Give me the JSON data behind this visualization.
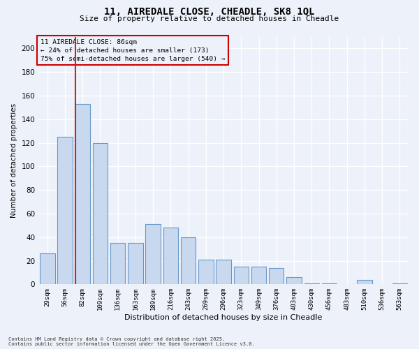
{
  "title": "11, AIREDALE CLOSE, CHEADLE, SK8 1QL",
  "subtitle": "Size of property relative to detached houses in Cheadle",
  "xlabel": "Distribution of detached houses by size in Cheadle",
  "ylabel": "Number of detached properties",
  "categories": [
    "29sqm",
    "56sqm",
    "82sqm",
    "109sqm",
    "136sqm",
    "163sqm",
    "189sqm",
    "216sqm",
    "243sqm",
    "269sqm",
    "296sqm",
    "323sqm",
    "349sqm",
    "376sqm",
    "403sqm",
    "430sqm",
    "456sqm",
    "483sqm",
    "510sqm",
    "536sqm",
    "563sqm"
  ],
  "values": [
    26,
    125,
    153,
    120,
    35,
    35,
    51,
    48,
    40,
    21,
    21,
    15,
    15,
    14,
    6,
    1,
    1,
    0,
    4,
    0,
    1
  ],
  "bar_color": "#c8d8ee",
  "bar_edge_color": "#6699cc",
  "vline_color": "#cc2222",
  "annotation_title": "11 AIREDALE CLOSE: 86sqm",
  "annotation_line1": "← 24% of detached houses are smaller (173)",
  "annotation_line2": "75% of semi-detached houses are larger (540) →",
  "annotation_box_color": "#cc0000",
  "background_color": "#edf1f9",
  "grid_color": "#ffffff",
  "ylim": [
    0,
    210
  ],
  "yticks": [
    0,
    20,
    40,
    60,
    80,
    100,
    120,
    140,
    160,
    180,
    200
  ],
  "footer1": "Contains HM Land Registry data © Crown copyright and database right 2025.",
  "footer2": "Contains public sector information licensed under the Open Government Licence v3.0."
}
